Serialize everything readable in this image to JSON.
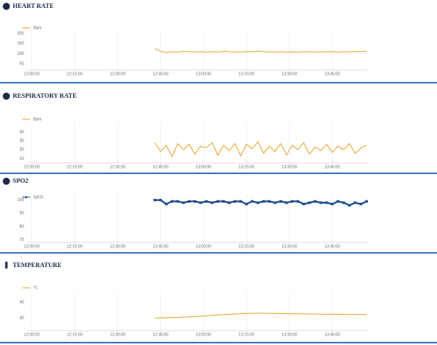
{
  "chart_data": [
    {
      "type": "line",
      "title": "HEART RATE",
      "series": [
        {
          "name": "Bpm",
          "color": "#e8a531",
          "values": [
            125,
            112,
            105,
            110,
            108,
            112,
            110,
            109,
            111,
            108,
            110,
            109,
            112,
            110,
            108,
            109,
            111,
            110,
            113,
            110,
            109,
            108,
            110,
            107,
            109,
            108,
            110,
            109,
            108,
            110,
            109,
            111,
            108,
            110,
            109,
            111,
            110,
            112
          ]
        }
      ],
      "x": [
        "12:43:00",
        "12:45:00",
        "12:47:00",
        "12:49:00",
        "12:51:00",
        "12:53:00",
        "12:55:00",
        "12:57:00",
        "12:59:00",
        "13:01:00",
        "13:03:00",
        "13:05:00",
        "13:07:00",
        "13:09:00",
        "13:11:00",
        "13:13:00",
        "13:15:00",
        "13:17:00",
        "13:19:00",
        "13:21:00",
        "13:23:00",
        "13:25:00",
        "13:27:00",
        "13:29:00",
        "13:31:00",
        "13:33:00",
        "13:35:00",
        "13:37:00",
        "13:39:00",
        "13:41:00",
        "13:43:00",
        "13:45:00",
        "13:47:00",
        "13:49:00",
        "13:51:00",
        "13:53:00",
        "13:55:00",
        "13:57:00"
      ],
      "xlim": [
        "11:58:20",
        "13:57:10"
      ],
      "xticks": [
        "12:00:00",
        "12:15:00",
        "12:30:00",
        "12:45:00",
        "13:00:00",
        "13:15:00",
        "13:30:00",
        "13:45:00"
      ],
      "ylim": [
        20,
        220
      ],
      "yticks": [
        50,
        100,
        150,
        200
      ],
      "grid": true
    },
    {
      "type": "line",
      "title": "RESPIRATORY RATE",
      "series": [
        {
          "name": "Bpm",
          "color": "#e8a531",
          "values": [
            28,
            18,
            25,
            12,
            27,
            20,
            26,
            15,
            24,
            22,
            28,
            14,
            25,
            19,
            27,
            13,
            26,
            21,
            29,
            16,
            24,
            18,
            27,
            14,
            25,
            20,
            28,
            15,
            23,
            19,
            26,
            17,
            24,
            20,
            27,
            16,
            22,
            25
          ]
        }
      ],
      "x": [
        "12:43:00",
        "12:45:00",
        "12:47:00",
        "12:49:00",
        "12:51:00",
        "12:53:00",
        "12:55:00",
        "12:57:00",
        "12:59:00",
        "13:01:00",
        "13:03:00",
        "13:05:00",
        "13:07:00",
        "13:09:00",
        "13:11:00",
        "13:13:00",
        "13:15:00",
        "13:17:00",
        "13:19:00",
        "13:21:00",
        "13:23:00",
        "13:25:00",
        "13:27:00",
        "13:29:00",
        "13:31:00",
        "13:33:00",
        "13:35:00",
        "13:37:00",
        "13:39:00",
        "13:41:00",
        "13:43:00",
        "13:45:00",
        "13:47:00",
        "13:49:00",
        "13:51:00",
        "13:53:00",
        "13:55:00",
        "13:57:00"
      ],
      "xlim": [
        "11:58:20",
        "13:57:10"
      ],
      "xticks": [
        "12:00:00",
        "12:15:00",
        "12:30:00",
        "12:45:00",
        "13:00:00",
        "13:15:00",
        "13:30:00",
        "13:45:00"
      ],
      "ylim": [
        5,
        50
      ],
      "yticks": [
        10,
        20,
        30,
        40
      ],
      "grid": true
    },
    {
      "type": "line",
      "title": "SPO2",
      "markers": true,
      "series": [
        {
          "name": "SpO2",
          "color": "#1f4e8c",
          "values": [
            100,
            100,
            97,
            99,
            99,
            98,
            99,
            99,
            98,
            99,
            98,
            99,
            99,
            98,
            99,
            99,
            97,
            99,
            98,
            99,
            99,
            98,
            99,
            98,
            99,
            99,
            97,
            98,
            99,
            98,
            98,
            97,
            99,
            98,
            96,
            98,
            97,
            99
          ]
        }
      ],
      "x": [
        "12:43:00",
        "12:45:00",
        "12:47:00",
        "12:49:00",
        "12:51:00",
        "12:53:00",
        "12:55:00",
        "12:57:00",
        "12:59:00",
        "13:01:00",
        "13:03:00",
        "13:05:00",
        "13:07:00",
        "13:09:00",
        "13:11:00",
        "13:13:00",
        "13:15:00",
        "13:17:00",
        "13:19:00",
        "13:21:00",
        "13:23:00",
        "13:25:00",
        "13:27:00",
        "13:29:00",
        "13:31:00",
        "13:33:00",
        "13:35:00",
        "13:37:00",
        "13:39:00",
        "13:41:00",
        "13:43:00",
        "13:45:00",
        "13:47:00",
        "13:49:00",
        "13:51:00",
        "13:53:00",
        "13:55:00",
        "13:57:00"
      ],
      "xlim": [
        "11:58:20",
        "13:57:10"
      ],
      "xticks": [
        "12:00:00",
        "12:15:00",
        "12:30:00",
        "12:45:00",
        "13:00:00",
        "13:15:00",
        "13:30:00",
        "13:45:00"
      ],
      "ylim": [
        68,
        104
      ],
      "yticks": [
        70,
        80,
        90,
        100
      ],
      "grid": true
    },
    {
      "type": "line",
      "title": "TEMPERATURE",
      "series": [
        {
          "name": "°C",
          "color": "#e8a531",
          "values": [
            30,
            30,
            30.1,
            30.2,
            30.3,
            30.5,
            30.7,
            30.9,
            31.1,
            31.4,
            31.6,
            31.9,
            32.1,
            32.3,
            32.5,
            32.7,
            32.8,
            32.9,
            33,
            33,
            32.9,
            32.8,
            32.8,
            32.7,
            32.6,
            32.6,
            32.6,
            32.5,
            32.5,
            32.4,
            32.4,
            32.4,
            32.3,
            32.3,
            32.2,
            32.2,
            32.2,
            32.1
          ]
        }
      ],
      "x": [
        "12:43:00",
        "12:45:00",
        "12:47:00",
        "12:49:00",
        "12:51:00",
        "12:53:00",
        "12:55:00",
        "12:57:00",
        "12:59:00",
        "13:01:00",
        "13:03:00",
        "13:05:00",
        "13:07:00",
        "13:09:00",
        "13:11:00",
        "13:13:00",
        "13:15:00",
        "13:17:00",
        "13:19:00",
        "13:21:00",
        "13:23:00",
        "13:25:00",
        "13:27:00",
        "13:29:00",
        "13:31:00",
        "13:33:00",
        "13:35:00",
        "13:37:00",
        "13:39:00",
        "13:41:00",
        "13:43:00",
        "13:45:00",
        "13:47:00",
        "13:49:00",
        "13:51:00",
        "13:53:00",
        "13:55:00",
        "13:57:00"
      ],
      "xlim": [
        "11:58:20",
        "13:57:10"
      ],
      "xticks": [
        "12:00:00",
        "12:15:00",
        "12:30:00",
        "12:45:00",
        "13:00:00",
        "13:15:00",
        "13:30:00",
        "13:45:00"
      ],
      "ylim": [
        22,
        46
      ],
      "yticks": [
        30,
        40
      ],
      "grid": true
    }
  ]
}
